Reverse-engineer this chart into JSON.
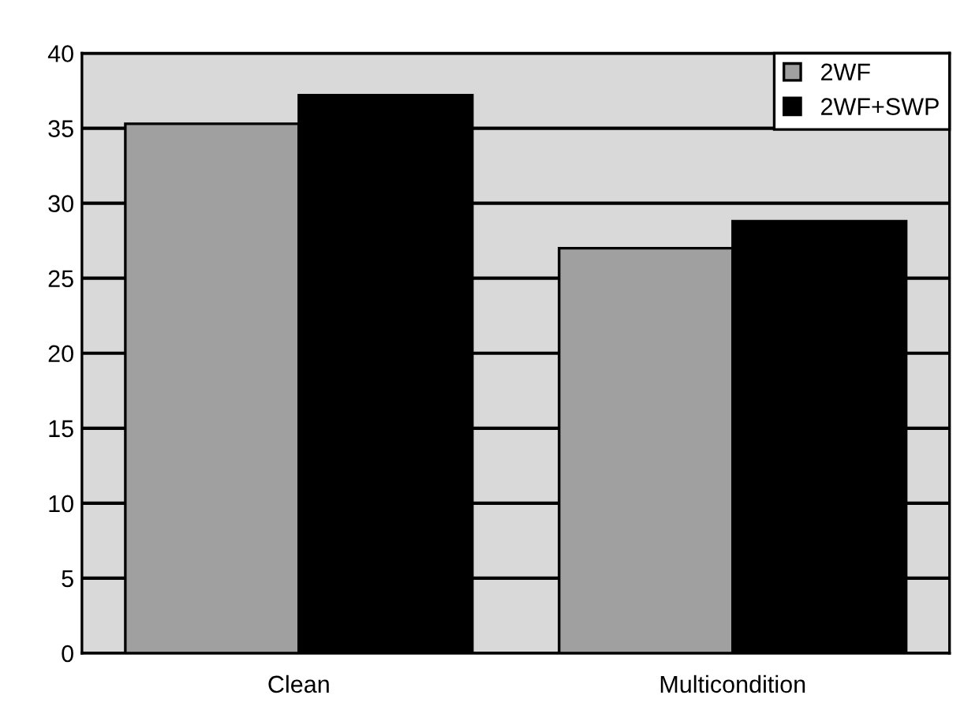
{
  "chart_data": {
    "type": "bar",
    "categories": [
      "Clean",
      "Multicondition"
    ],
    "series": [
      {
        "name": "2WF",
        "color": "#a0a0a0",
        "values": [
          35.3,
          27.0
        ]
      },
      {
        "name": "2WF+SWP",
        "color": "#000000",
        "values": [
          37.2,
          28.8
        ]
      }
    ],
    "ylim": [
      0,
      40
    ],
    "yticks": [
      0,
      5,
      10,
      15,
      20,
      25,
      30,
      35,
      40
    ],
    "grid": "y",
    "legend": "top right"
  }
}
